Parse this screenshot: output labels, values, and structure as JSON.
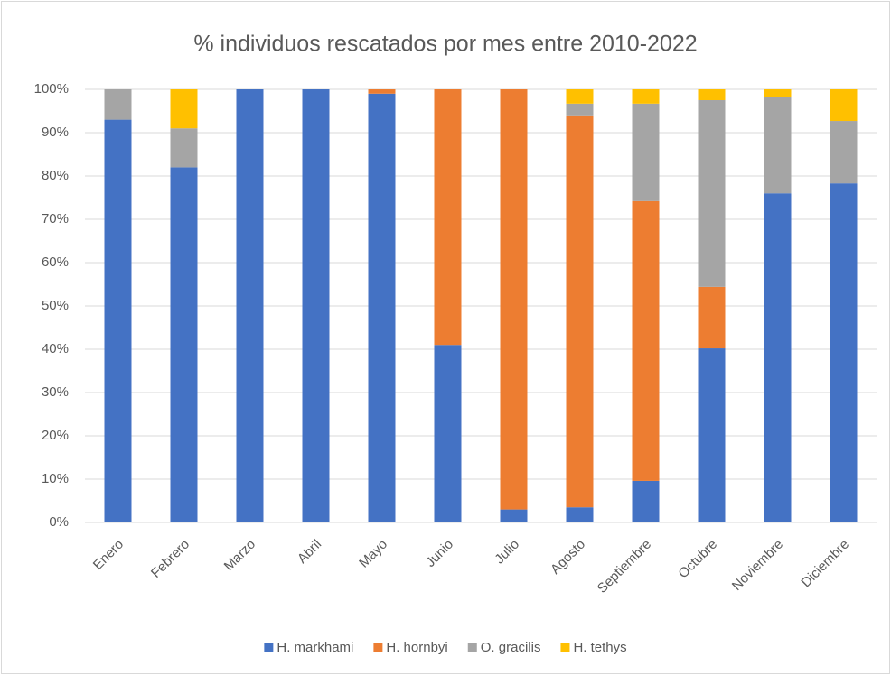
{
  "chart_data": {
    "type": "stacked_bar",
    "title": "% individuos rescatados por mes entre 2010-2022",
    "categories": [
      "Enero",
      "Febrero",
      "Marzo",
      "Abril",
      "Mayo",
      "Junio",
      "Julio",
      "Agosto",
      "Septiembre",
      "Octubre",
      "Noviembre",
      "Diciembre"
    ],
    "series": [
      {
        "name": "H. markhami",
        "color": "#4472c4",
        "values": [
          93,
          82,
          100,
          100,
          99,
          41,
          3,
          3.5,
          9.6,
          40.2,
          76,
          78.3
        ]
      },
      {
        "name": "H. hornbyi",
        "color": "#ed7d31",
        "values": [
          0,
          0,
          0,
          0,
          1,
          59,
          97,
          90.5,
          64.6,
          14.2,
          0,
          0
        ]
      },
      {
        "name": "O. gracilis",
        "color": "#a5a5a5",
        "values": [
          7,
          9,
          0,
          0,
          0,
          0,
          0,
          2.7,
          22.5,
          43.1,
          22.3,
          14.4
        ]
      },
      {
        "name": "H. tethys",
        "color": "#ffc000",
        "values": [
          0,
          9,
          0,
          0,
          0,
          0,
          0,
          3.3,
          3.3,
          2.5,
          1.7,
          7.3
        ]
      }
    ],
    "ylim": [
      0,
      100
    ],
    "yticks": [
      {
        "value": 0,
        "label": "0%"
      },
      {
        "value": 10,
        "label": "10%"
      },
      {
        "value": 20,
        "label": "20%"
      },
      {
        "value": 30,
        "label": "30%"
      },
      {
        "value": 40,
        "label": "40%"
      },
      {
        "value": 50,
        "label": "50%"
      },
      {
        "value": 60,
        "label": "60%"
      },
      {
        "value": 70,
        "label": "70%"
      },
      {
        "value": 80,
        "label": "80%"
      },
      {
        "value": 90,
        "label": "90%"
      },
      {
        "value": 100,
        "label": "100%"
      }
    ],
    "grid": true,
    "legend": "bottom"
  }
}
